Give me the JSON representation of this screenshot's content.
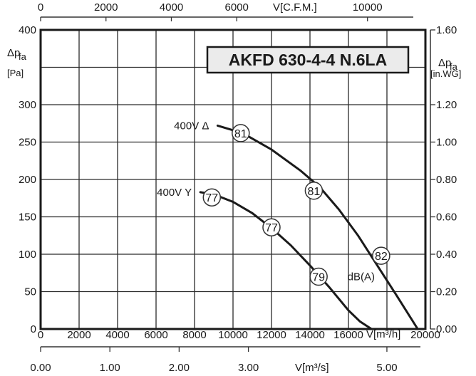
{
  "chart_data": {
    "type": "line",
    "title": "AKFD 630-4-4 N.6LA",
    "xlabel": "V[m³/h]",
    "ylabel": "Δp_fa [Pa]",
    "x_axis": {
      "label": "V[m³/h]",
      "range": [
        0,
        20000
      ],
      "ticks": [
        0,
        2000,
        4000,
        6000,
        8000,
        10000,
        12000,
        14000,
        16000,
        20000
      ]
    },
    "x_axis_top": {
      "label": "V[C.F.M.]",
      "range": [
        0,
        11772
      ],
      "ticks": [
        0,
        2000,
        4000,
        6000,
        10000
      ]
    },
    "x_axis_bottom": {
      "label": "V[m³/s]",
      "range": [
        0,
        5.556
      ],
      "ticks": [
        "0.00",
        "1.00",
        "2.00",
        "3.00",
        "5.00"
      ],
      "tick_values": [
        0,
        1,
        2,
        3,
        5
      ]
    },
    "y_axis": {
      "label_main": "Δp",
      "label_sub": "fa",
      "unit": "[Pa]",
      "range": [
        0,
        400
      ],
      "ticks": [
        0,
        50,
        100,
        150,
        200,
        250,
        300,
        400
      ]
    },
    "y_axis_right": {
      "label_main": "Δp",
      "label_sub": "fa",
      "unit": "[in.WG]",
      "range": [
        0,
        1.6
      ],
      "ticks": [
        "0.00",
        "0.20",
        "0.40",
        "0.60",
        "0.80",
        "1.00",
        "1.20",
        "1.60"
      ],
      "tick_values": [
        0,
        0.2,
        0.4,
        0.6,
        0.8,
        1.0,
        1.2,
        1.6
      ]
    },
    "grid": true,
    "series": [
      {
        "name": "400V Δ",
        "x": [
          9200,
          10500,
          12000,
          13500,
          14500,
          15500,
          16500,
          17500,
          18500,
          19600
        ],
        "y": [
          272,
          262,
          240,
          212,
          190,
          160,
          125,
          85,
          45,
          0
        ],
        "markers": [
          {
            "x": 10400,
            "y": 262,
            "label": "81"
          },
          {
            "x": 14200,
            "y": 185,
            "label": "81"
          },
          {
            "x": 17700,
            "y": 98,
            "label": "82"
          }
        ]
      },
      {
        "name": "400V Y",
        "x": [
          8300,
          9000,
          10000,
          11000,
          12000,
          13000,
          14000,
          15000,
          16000,
          16600,
          17200
        ],
        "y": [
          183,
          180,
          170,
          155,
          135,
          112,
          85,
          56,
          25,
          10,
          0
        ],
        "markers": [
          {
            "x": 8900,
            "y": 176,
            "label": "77"
          },
          {
            "x": 12000,
            "y": 136,
            "label": "77"
          },
          {
            "x": 14450,
            "y": 70,
            "label": "79"
          }
        ]
      }
    ],
    "annotations": [
      {
        "text": "dB(A)",
        "x": 15950,
        "y": 70
      }
    ]
  }
}
